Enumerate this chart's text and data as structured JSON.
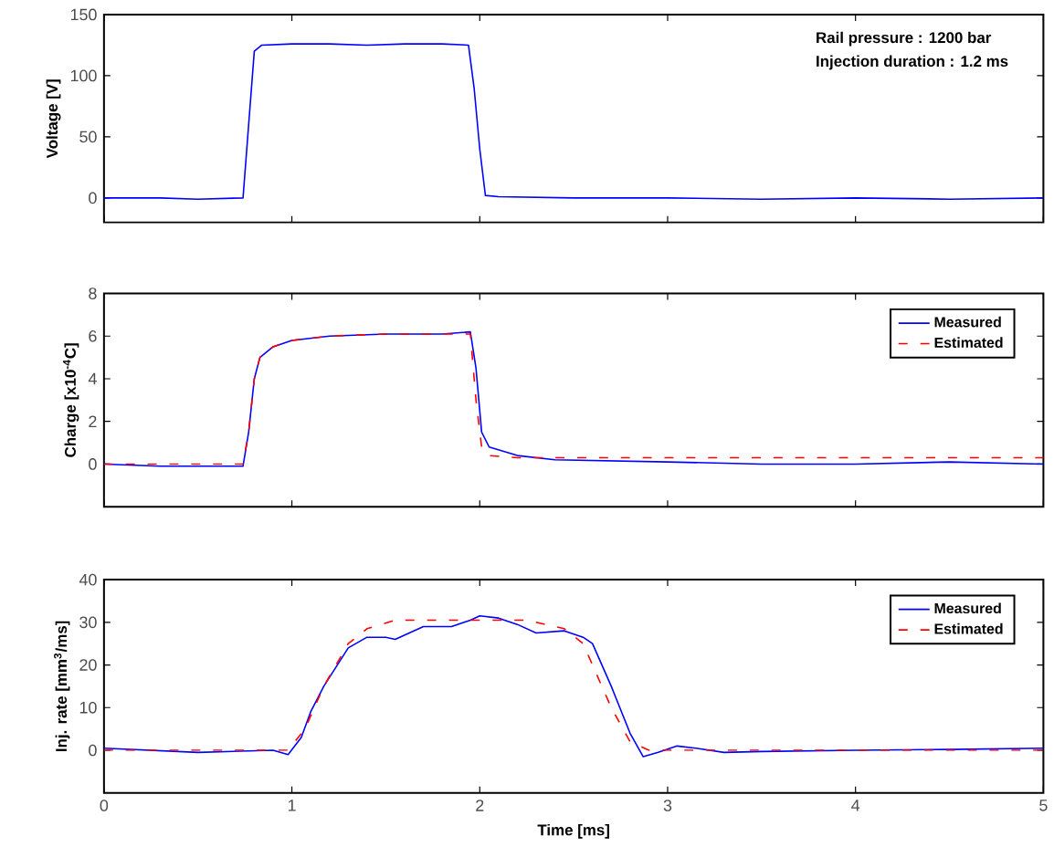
{
  "chart_data": [
    {
      "type": "line",
      "ylabel": "Voltage [V]",
      "annotations": [
        "Rail pressure : 1200 bar",
        "Injection duration : 1.2 ms"
      ],
      "xlim": [
        0,
        5
      ],
      "ylim": [
        -20,
        150
      ],
      "xticks": [
        0,
        1,
        2,
        3,
        4,
        5
      ],
      "yticks": [
        0,
        50,
        100,
        150
      ],
      "tick_labels": "y",
      "series": [
        {
          "color": "#0000ff",
          "line_style": "solid",
          "x": [
            0,
            0.3,
            0.5,
            0.74,
            0.77,
            0.8,
            0.84,
            1.0,
            1.2,
            1.4,
            1.6,
            1.8,
            1.94,
            1.97,
            2.0,
            2.03,
            2.1,
            2.5,
            3.0,
            3.5,
            4.0,
            4.5,
            5.0
          ],
          "values": [
            0,
            0,
            -1,
            0,
            60,
            120,
            125,
            126,
            126,
            125,
            126,
            126,
            125,
            90,
            40,
            2,
            1,
            0,
            0,
            -1,
            0,
            -1,
            0
          ]
        }
      ]
    },
    {
      "type": "line",
      "ylabel": "Charge [x10$^{-4}$C]",
      "xlim": [
        0,
        5
      ],
      "ylim": [
        -2,
        8
      ],
      "xticks": [
        0,
        1,
        2,
        3,
        4,
        5
      ],
      "yticks": [
        0,
        2,
        4,
        6,
        8
      ],
      "tick_labels": "y",
      "legend": "top right",
      "series": [
        {
          "name": "Measured",
          "color": "#0000ff",
          "line_style": "solid",
          "x": [
            0,
            0.3,
            0.74,
            0.77,
            0.8,
            0.83,
            0.9,
            1.0,
            1.2,
            1.5,
            1.8,
            1.95,
            1.98,
            2.01,
            2.05,
            2.2,
            2.4,
            3.0,
            3.5,
            4.0,
            4.5,
            5.0
          ],
          "values": [
            0,
            -0.1,
            -0.1,
            1.5,
            4,
            5.0,
            5.5,
            5.8,
            6.0,
            6.1,
            6.1,
            6.2,
            4.5,
            1.5,
            0.8,
            0.4,
            0.2,
            0.1,
            0,
            0,
            0.1,
            0
          ]
        },
        {
          "name": "Estimated",
          "color": "#ff0000",
          "line_style": "dashed",
          "x": [
            0,
            0.3,
            0.74,
            0.77,
            0.8,
            0.83,
            0.9,
            1.0,
            1.2,
            1.5,
            1.8,
            1.95,
            1.98,
            2.01,
            2.05,
            2.2,
            2.4,
            3.0,
            3.5,
            4.0,
            4.5,
            5.0
          ],
          "values": [
            0,
            0,
            0,
            1.5,
            4,
            5.0,
            5.5,
            5.8,
            6.0,
            6.1,
            6.1,
            6.1,
            3.0,
            0.8,
            0.4,
            0.3,
            0.3,
            0.3,
            0.3,
            0.3,
            0.3,
            0.3
          ]
        }
      ]
    },
    {
      "type": "line",
      "xlabel": "Time [ms]",
      "ylabel": "Inj. rate [mm$^{3}$/ms]",
      "xlim": [
        0,
        5
      ],
      "ylim": [
        -10,
        40
      ],
      "xticks": [
        0,
        1,
        2,
        3,
        4,
        5
      ],
      "yticks": [
        0,
        10,
        20,
        30,
        40
      ],
      "legend": "top right",
      "series": [
        {
          "name": "Measured",
          "color": "#0000ff",
          "line_style": "solid",
          "x": [
            0,
            0.5,
            0.9,
            0.98,
            1.05,
            1.1,
            1.17,
            1.3,
            1.4,
            1.5,
            1.55,
            1.7,
            1.85,
            1.95,
            2.0,
            2.1,
            2.2,
            2.3,
            2.45,
            2.55,
            2.6,
            2.7,
            2.8,
            2.87,
            2.95,
            3.05,
            3.15,
            3.3,
            3.5,
            4.0,
            4.5,
            5.0
          ],
          "values": [
            0.5,
            -0.5,
            0,
            -1,
            3,
            9,
            15,
            24,
            26.5,
            26.5,
            26,
            29,
            29,
            30.5,
            31.5,
            31,
            29.5,
            27.5,
            28,
            26.5,
            25,
            15,
            4,
            -1.5,
            -0.5,
            1,
            0.5,
            -0.5,
            -0.3,
            0,
            0.2,
            0.5
          ]
        },
        {
          "name": "Estimated",
          "color": "#ff0000",
          "line_style": "dashed",
          "x": [
            0,
            0.5,
            0.98,
            1.07,
            1.17,
            1.3,
            1.4,
            1.55,
            1.8,
            2.0,
            2.25,
            2.45,
            2.55,
            2.6,
            2.7,
            2.8,
            2.9,
            3.0,
            3.5,
            4.0,
            4.5,
            5.0
          ],
          "values": [
            0,
            0,
            0,
            5,
            15,
            25,
            28.5,
            30.5,
            30.5,
            30.5,
            30.5,
            28.5,
            25,
            20,
            10,
            2,
            0,
            0,
            0,
            0,
            0,
            0
          ]
        }
      ]
    }
  ]
}
